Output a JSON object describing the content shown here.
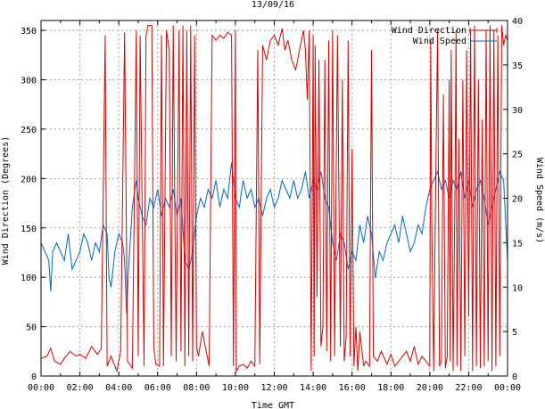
{
  "chart_data": {
    "type": "line",
    "title": "13/09/16",
    "xlabel": "Time GMT",
    "ylabel_left": "Wind Direction (Degrees)",
    "ylabel_right": "Wind Speed (m/s)",
    "x_ticks": [
      "00:00",
      "02:00",
      "04:00",
      "06:00",
      "08:00",
      "10:00",
      "12:00",
      "14:00",
      "16:00",
      "18:00",
      "20:00",
      "22:00",
      "00:00"
    ],
    "x_range_hours": [
      0,
      24
    ],
    "y_left_ticks": [
      "0",
      "50",
      "100",
      "150",
      "200",
      "250",
      "300",
      "350"
    ],
    "y_left_range": [
      0,
      360
    ],
    "y_right_ticks": [
      "0",
      "5",
      "10",
      "15",
      "20",
      "25",
      "30",
      "35",
      "40"
    ],
    "y_right_range": [
      0,
      40
    ],
    "grid": true,
    "legend_position": "top-right",
    "series": [
      {
        "name": "Wind Direction",
        "axis": "left",
        "color": "#dd0000",
        "points": [
          [
            0,
            18
          ],
          [
            0.3,
            20
          ],
          [
            0.5,
            28
          ],
          [
            0.7,
            15
          ],
          [
            1.0,
            12
          ],
          [
            1.2,
            18
          ],
          [
            1.5,
            25
          ],
          [
            1.8,
            20
          ],
          [
            2.0,
            22
          ],
          [
            2.3,
            18
          ],
          [
            2.6,
            30
          ],
          [
            2.9,
            22
          ],
          [
            3.1,
            28
          ],
          [
            3.3,
            345
          ],
          [
            3.4,
            10
          ],
          [
            3.6,
            20
          ],
          [
            3.9,
            5
          ],
          [
            4.1,
            25
          ],
          [
            4.3,
            348
          ],
          [
            4.45,
            15
          ],
          [
            4.7,
            8
          ],
          [
            4.9,
            350
          ],
          [
            5.0,
            20
          ],
          [
            5.1,
            345
          ],
          [
            5.3,
            10
          ],
          [
            5.4,
            345
          ],
          [
            5.5,
            355
          ],
          [
            5.7,
            355
          ],
          [
            5.8,
            30
          ],
          [
            5.9,
            12
          ],
          [
            6.1,
            10
          ],
          [
            6.2,
            345
          ],
          [
            6.3,
            10
          ],
          [
            6.45,
            350
          ],
          [
            6.6,
            330
          ],
          [
            6.7,
            20
          ],
          [
            6.8,
            355
          ],
          [
            6.95,
            15
          ],
          [
            7.1,
            350
          ],
          [
            7.2,
            25
          ],
          [
            7.3,
            355
          ],
          [
            7.4,
            10
          ],
          [
            7.5,
            350
          ],
          [
            7.6,
            20
          ],
          [
            7.7,
            355
          ],
          [
            7.8,
            15
          ],
          [
            7.9,
            345
          ],
          [
            8.0,
            30
          ],
          [
            8.1,
            20
          ],
          [
            8.3,
            45
          ],
          [
            8.5,
            25
          ],
          [
            8.65,
            10
          ],
          [
            8.8,
            345
          ],
          [
            9.0,
            340
          ],
          [
            9.2,
            345
          ],
          [
            9.4,
            342
          ],
          [
            9.6,
            348
          ],
          [
            9.8,
            345
          ],
          [
            9.9,
            10
          ],
          [
            10.0,
            350
          ],
          [
            10.05,
            5
          ],
          [
            10.2,
            10
          ],
          [
            10.4,
            12
          ],
          [
            10.6,
            8
          ],
          [
            10.8,
            15
          ],
          [
            11.0,
            10
          ],
          [
            11.15,
            330
          ],
          [
            11.25,
            12
          ],
          [
            11.4,
            335
          ],
          [
            11.6,
            320
          ],
          [
            11.8,
            340
          ],
          [
            12.0,
            345
          ],
          [
            12.2,
            335
          ],
          [
            12.4,
            352
          ],
          [
            12.55,
            330
          ],
          [
            12.7,
            340
          ],
          [
            12.9,
            320
          ],
          [
            13.1,
            310
          ],
          [
            13.3,
            330
          ],
          [
            13.5,
            350
          ],
          [
            13.6,
            330
          ],
          [
            13.7,
            280
          ],
          [
            13.8,
            350
          ],
          [
            13.9,
            5
          ],
          [
            14.0,
            345
          ],
          [
            14.05,
            20
          ],
          [
            14.1,
            335
          ],
          [
            14.2,
            80
          ],
          [
            14.3,
            320
          ],
          [
            14.4,
            30
          ],
          [
            14.5,
            50
          ],
          [
            14.6,
            320
          ],
          [
            14.7,
            25
          ],
          [
            14.8,
            340
          ],
          [
            14.9,
            15
          ],
          [
            15.0,
            350
          ],
          [
            15.1,
            20
          ],
          [
            15.25,
            345
          ],
          [
            15.4,
            30
          ],
          [
            15.5,
            300
          ],
          [
            15.6,
            15
          ],
          [
            15.7,
            40
          ],
          [
            15.8,
            340
          ],
          [
            15.9,
            20
          ],
          [
            16.0,
            230
          ],
          [
            16.1,
            10
          ],
          [
            16.2,
            50
          ],
          [
            16.3,
            5
          ],
          [
            16.4,
            45
          ],
          [
            16.6,
            10
          ],
          [
            16.7,
            15
          ],
          [
            16.9,
            10
          ],
          [
            17.0,
            330
          ],
          [
            17.1,
            20
          ],
          [
            17.3,
            15
          ],
          [
            17.5,
            25
          ],
          [
            17.8,
            12
          ],
          [
            18.0,
            22
          ],
          [
            18.2,
            10
          ],
          [
            18.4,
            15
          ],
          [
            18.6,
            20
          ],
          [
            18.8,
            25
          ],
          [
            19.0,
            15
          ],
          [
            19.2,
            30
          ],
          [
            19.4,
            12
          ],
          [
            19.6,
            20
          ],
          [
            19.8,
            15
          ],
          [
            20.0,
            10
          ],
          [
            20.05,
            340
          ],
          [
            20.1,
            160
          ],
          [
            20.2,
            5
          ],
          [
            20.3,
            190
          ],
          [
            20.4,
            350
          ],
          [
            20.5,
            10
          ],
          [
            20.6,
            15
          ],
          [
            20.7,
            285
          ],
          [
            20.8,
            8
          ],
          [
            20.9,
            20
          ],
          [
            21.0,
            300
          ],
          [
            21.05,
            15
          ],
          [
            21.1,
            330
          ],
          [
            21.2,
            5
          ],
          [
            21.3,
            200
          ],
          [
            21.35,
            350
          ],
          [
            21.4,
            10
          ],
          [
            21.5,
            240
          ],
          [
            21.6,
            5
          ],
          [
            21.7,
            300
          ],
          [
            21.8,
            20
          ],
          [
            21.9,
            330
          ],
          [
            22.0,
            60
          ],
          [
            22.1,
            350
          ],
          [
            22.2,
            5
          ],
          [
            22.3,
            355
          ],
          [
            22.4,
            10
          ],
          [
            22.5,
            300
          ],
          [
            22.6,
            8
          ],
          [
            22.7,
            260
          ],
          [
            22.8,
            10
          ],
          [
            22.9,
            350
          ],
          [
            23.0,
            15
          ],
          [
            23.1,
            355
          ],
          [
            23.2,
            5
          ],
          [
            23.3,
            350
          ],
          [
            23.4,
            10
          ],
          [
            23.5,
            345
          ],
          [
            23.6,
            20
          ],
          [
            23.7,
            355
          ],
          [
            23.8,
            335
          ],
          [
            23.9,
            345
          ],
          [
            24.0,
            340
          ]
        ]
      },
      {
        "name": "Wind Speed",
        "axis": "right",
        "color": "#0066cc",
        "points": [
          [
            0,
            15
          ],
          [
            0.2,
            14
          ],
          [
            0.4,
            13
          ],
          [
            0.5,
            9.5
          ],
          [
            0.6,
            14
          ],
          [
            0.8,
            15
          ],
          [
            1.0,
            14
          ],
          [
            1.2,
            13
          ],
          [
            1.4,
            16
          ],
          [
            1.5,
            14
          ],
          [
            1.6,
            12
          ],
          [
            1.8,
            13
          ],
          [
            2.0,
            14
          ],
          [
            2.2,
            16
          ],
          [
            2.4,
            15
          ],
          [
            2.6,
            13
          ],
          [
            2.8,
            15
          ],
          [
            3.0,
            14
          ],
          [
            3.2,
            17
          ],
          [
            3.4,
            16
          ],
          [
            3.5,
            11
          ],
          [
            3.6,
            10
          ],
          [
            3.8,
            14
          ],
          [
            4.0,
            16
          ],
          [
            4.2,
            15
          ],
          [
            4.3,
            13
          ],
          [
            4.4,
            7
          ],
          [
            4.5,
            12
          ],
          [
            4.7,
            19
          ],
          [
            4.9,
            22
          ],
          [
            5.0,
            20
          ],
          [
            5.2,
            18
          ],
          [
            5.4,
            17
          ],
          [
            5.6,
            20
          ],
          [
            5.8,
            19
          ],
          [
            6.0,
            21
          ],
          [
            6.2,
            18
          ],
          [
            6.4,
            20
          ],
          [
            6.6,
            19
          ],
          [
            6.8,
            21
          ],
          [
            7.0,
            18
          ],
          [
            7.2,
            20
          ],
          [
            7.4,
            13
          ],
          [
            7.6,
            12
          ],
          [
            7.8,
            14
          ],
          [
            8.0,
            18
          ],
          [
            8.2,
            20
          ],
          [
            8.4,
            19
          ],
          [
            8.6,
            21
          ],
          [
            8.8,
            20
          ],
          [
            9.0,
            22
          ],
          [
            9.2,
            19
          ],
          [
            9.4,
            21
          ],
          [
            9.6,
            20
          ],
          [
            9.8,
            24
          ],
          [
            10.0,
            20
          ],
          [
            10.2,
            19
          ],
          [
            10.4,
            22
          ],
          [
            10.6,
            20
          ],
          [
            10.8,
            21
          ],
          [
            11.0,
            19
          ],
          [
            11.2,
            20
          ],
          [
            11.4,
            18
          ],
          [
            11.6,
            20
          ],
          [
            11.8,
            21
          ],
          [
            12.0,
            19
          ],
          [
            12.2,
            20
          ],
          [
            12.4,
            22
          ],
          [
            12.6,
            21
          ],
          [
            12.8,
            20
          ],
          [
            13.0,
            22
          ],
          [
            13.2,
            20
          ],
          [
            13.4,
            21
          ],
          [
            13.6,
            23
          ],
          [
            13.8,
            20
          ],
          [
            14.0,
            22
          ],
          [
            14.2,
            21
          ],
          [
            14.4,
            23
          ],
          [
            14.6,
            20
          ],
          [
            14.8,
            19
          ],
          [
            15.0,
            15
          ],
          [
            15.2,
            13
          ],
          [
            15.4,
            16
          ],
          [
            15.6,
            15
          ],
          [
            15.8,
            12
          ],
          [
            16.0,
            14
          ],
          [
            16.2,
            13
          ],
          [
            16.4,
            17
          ],
          [
            16.6,
            15
          ],
          [
            16.8,
            18
          ],
          [
            17.0,
            16
          ],
          [
            17.2,
            11
          ],
          [
            17.4,
            14
          ],
          [
            17.6,
            13
          ],
          [
            17.8,
            15
          ],
          [
            18.0,
            16
          ],
          [
            18.2,
            17
          ],
          [
            18.4,
            15
          ],
          [
            18.6,
            18
          ],
          [
            18.8,
            16
          ],
          [
            19.0,
            14
          ],
          [
            19.2,
            15
          ],
          [
            19.4,
            17
          ],
          [
            19.6,
            16
          ],
          [
            19.8,
            19
          ],
          [
            20.0,
            21
          ],
          [
            20.2,
            22
          ],
          [
            20.4,
            23
          ],
          [
            20.6,
            21
          ],
          [
            20.8,
            22
          ],
          [
            21.0,
            20
          ],
          [
            21.2,
            22
          ],
          [
            21.4,
            21
          ],
          [
            21.6,
            23
          ],
          [
            21.8,
            20
          ],
          [
            22.0,
            22
          ],
          [
            22.2,
            19
          ],
          [
            22.4,
            21
          ],
          [
            22.6,
            22
          ],
          [
            22.8,
            20
          ],
          [
            23.0,
            17
          ],
          [
            23.2,
            19
          ],
          [
            23.4,
            21
          ],
          [
            23.6,
            23
          ],
          [
            23.8,
            22
          ],
          [
            24.0,
            13
          ]
        ]
      }
    ]
  }
}
